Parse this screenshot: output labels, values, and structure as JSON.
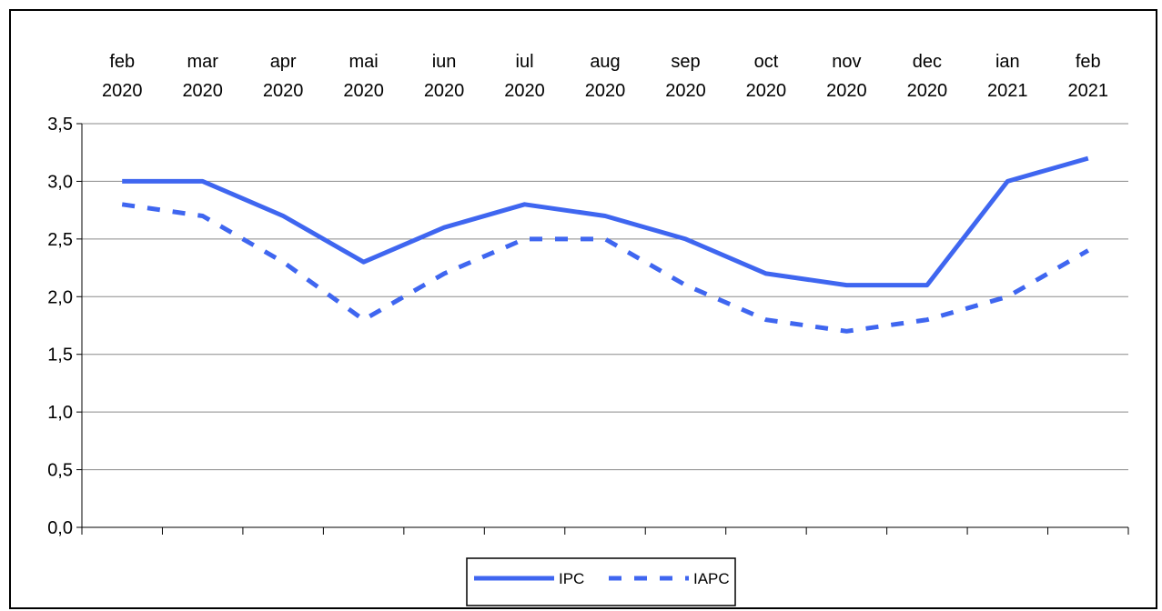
{
  "chart_data": {
    "type": "line",
    "categories": [
      [
        "feb",
        "2020"
      ],
      [
        "mar",
        "2020"
      ],
      [
        "apr",
        "2020"
      ],
      [
        "mai",
        "2020"
      ],
      [
        "iun",
        "2020"
      ],
      [
        "iul",
        "2020"
      ],
      [
        "aug",
        "2020"
      ],
      [
        "sep",
        "2020"
      ],
      [
        "oct",
        "2020"
      ],
      [
        "nov",
        "2020"
      ],
      [
        "dec",
        "2020"
      ],
      [
        "ian",
        "2021"
      ],
      [
        "feb",
        "2021"
      ]
    ],
    "series": [
      {
        "name": "IPC",
        "style": "solid",
        "color": "#3F66F0",
        "values": [
          3.0,
          3.0,
          2.7,
          2.3,
          2.6,
          2.8,
          2.7,
          2.5,
          2.2,
          2.1,
          2.1,
          3.0,
          3.2
        ]
      },
      {
        "name": "IAPC",
        "style": "dashed",
        "color": "#3F66F0",
        "values": [
          2.8,
          2.7,
          2.3,
          1.8,
          2.2,
          2.5,
          2.5,
          2.1,
          1.8,
          1.7,
          1.8,
          2.0,
          2.4
        ]
      }
    ],
    "y_ticks": [
      "0,0",
      "0,5",
      "1,0",
      "1,5",
      "2,0",
      "2,5",
      "3,0",
      "3,5"
    ],
    "ylim": [
      0,
      3.5
    ],
    "grid": true,
    "legend_position": "bottom-center",
    "category_axis_position": "top"
  }
}
